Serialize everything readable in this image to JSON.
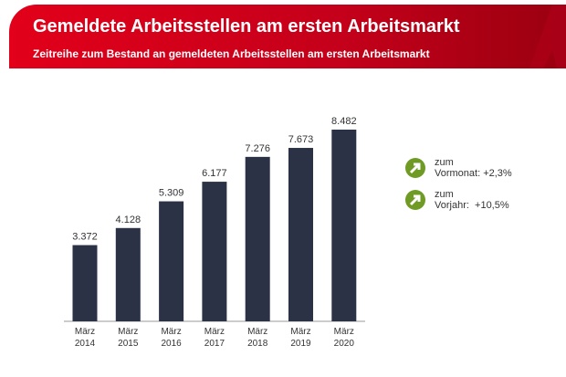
{
  "header": {
    "title": "Gemeldete Arbeitsstellen am ersten Arbeitsmarkt",
    "subtitle": "Zeitreihe zum Bestand an gemeldeten Arbeitsstellen am ersten Arbeitsmarkt"
  },
  "indicators": [
    {
      "icon": "arrow-up-right-icon",
      "line1": "zum",
      "line2": "Vormonat: +2,3%"
    },
    {
      "icon": "arrow-up-right-icon",
      "line1": "zum",
      "line2": "Vorjahr:  +10,5%"
    }
  ],
  "colors": {
    "header": "#e2001a",
    "bar": "#2b3245",
    "indicator": "#6f9a24"
  },
  "chart_data": {
    "type": "bar",
    "categories": [
      [
        "März",
        "2014"
      ],
      [
        "März",
        "2015"
      ],
      [
        "März",
        "2016"
      ],
      [
        "März",
        "2017"
      ],
      [
        "März",
        "2018"
      ],
      [
        "März",
        "2019"
      ],
      [
        "März",
        "2020"
      ]
    ],
    "values": [
      3372,
      4128,
      5309,
      6177,
      7276,
      7673,
      8482
    ],
    "labels": [
      "3.372",
      "4.128",
      "5.309",
      "6.177",
      "7.276",
      "7.673",
      "8.482"
    ],
    "ylim": [
      0,
      8482
    ],
    "grid": false
  }
}
